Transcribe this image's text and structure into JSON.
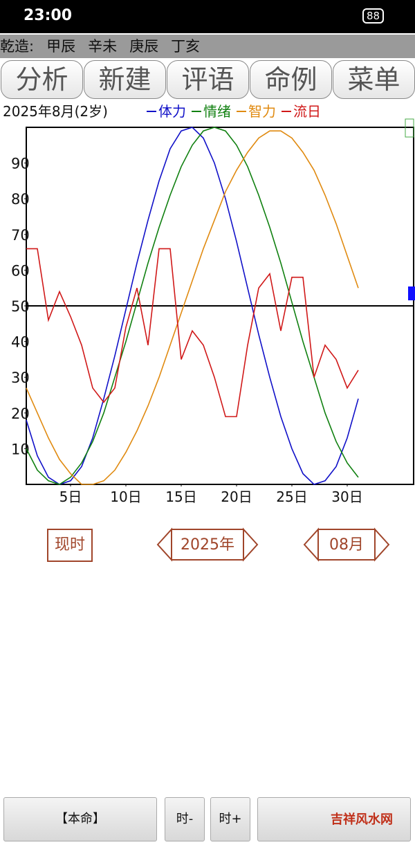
{
  "status_bar": {
    "time": "23:00",
    "battery": "88"
  },
  "header": {
    "label": "乾造:",
    "pillars": [
      "甲辰",
      "辛未",
      "庚辰",
      "丁亥"
    ]
  },
  "tabs": [
    "分析",
    "新建",
    "评语",
    "命例",
    "菜单"
  ],
  "chart_data": {
    "type": "line",
    "subtitle": "2025年8月(2岁)",
    "x": [
      1,
      2,
      3,
      4,
      5,
      6,
      7,
      8,
      9,
      10,
      11,
      12,
      13,
      14,
      15,
      16,
      17,
      18,
      19,
      20,
      21,
      22,
      23,
      24,
      25,
      26,
      27,
      28,
      29,
      30,
      31
    ],
    "series": [
      {
        "name": "体力",
        "color": "#1010c8",
        "values": [
          18,
          8,
          2,
          0,
          1,
          5,
          13,
          24,
          36,
          49,
          62,
          74,
          85,
          94,
          99,
          100,
          97,
          90,
          80,
          68,
          55,
          42,
          30,
          19,
          10,
          3,
          0,
          1,
          5,
          13,
          24
        ]
      },
      {
        "name": "情绪",
        "color": "#108010",
        "values": [
          10,
          4,
          1,
          0,
          2,
          6,
          12,
          20,
          30,
          40,
          51,
          62,
          72,
          81,
          89,
          95,
          99,
          100,
          99,
          95,
          89,
          81,
          72,
          62,
          51,
          40,
          30,
          20,
          12,
          6,
          2
        ]
      },
      {
        "name": "智力",
        "color": "#e08a10",
        "values": [
          27,
          20,
          13,
          7,
          3,
          0,
          0,
          1,
          4,
          9,
          15,
          22,
          30,
          39,
          48,
          57,
          66,
          74,
          82,
          88,
          93,
          97,
          99,
          99,
          97,
          93,
          88,
          81,
          73,
          64,
          55
        ]
      },
      {
        "name": "流日",
        "color": "#d01818",
        "values": [
          66,
          66,
          46,
          54,
          47,
          39,
          27,
          23,
          27,
          44,
          55,
          39,
          66,
          66,
          35,
          43,
          39,
          30,
          19,
          19,
          39,
          55,
          59,
          43,
          58,
          58,
          30,
          39,
          35,
          27,
          32
        ]
      }
    ],
    "xlim": [
      1,
      36
    ],
    "ylim": [
      0,
      100
    ],
    "xticks": [
      {
        "value": 5,
        "label": "5日"
      },
      {
        "value": 10,
        "label": "10日"
      },
      {
        "value": 15,
        "label": "15日"
      },
      {
        "value": 20,
        "label": "20日"
      },
      {
        "value": 25,
        "label": "25日"
      },
      {
        "value": 30,
        "label": "30日"
      }
    ],
    "yticks": [
      10,
      20,
      30,
      40,
      50,
      60,
      70,
      80,
      90
    ],
    "reference_line": 50
  },
  "controls": {
    "now": "现时",
    "year": "2025年",
    "month": "08月"
  },
  "footer": {
    "buttons": [
      "【本命】",
      "时-",
      "时+"
    ],
    "watermark": "吉祥风水网"
  }
}
